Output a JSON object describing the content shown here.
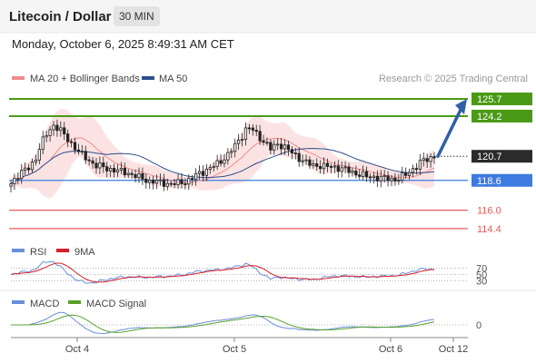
{
  "header": {
    "title": "Litecoin / Dollar",
    "interval": "30 MIN",
    "datetime": "Monday, October 6, 2025 8:49:31 AM CET"
  },
  "chart_data": {
    "type": "candlestick",
    "credit": "Research © 2025 Trading Central",
    "legend": {
      "position": "top-left",
      "items": [
        {
          "label": "MA 20 + Bollinger Bands",
          "color": "#f08c8c"
        },
        {
          "label": "MA 50",
          "color": "#2c4f8c"
        }
      ]
    },
    "x_ticks": [
      "Oct 4",
      "Oct 5",
      "Oct 6",
      "Oct 12"
    ],
    "y_range": [
      113.6,
      127.2
    ],
    "resistance_levels": [
      {
        "value": 125.7,
        "label": "125.7",
        "color": "#4a9a16"
      },
      {
        "value": 124.2,
        "label": "124.2",
        "color": "#4a9a16"
      }
    ],
    "support_levels": [
      {
        "value": 118.6,
        "label": "118.6",
        "color": "#3d7be0"
      },
      {
        "value": 116.0,
        "label": "116.0",
        "color": "#e35b5b"
      },
      {
        "value": 114.4,
        "label": "114.4",
        "color": "#e35b5b"
      }
    ],
    "last_price": {
      "value": 120.7,
      "label": "120.7"
    },
    "forecast_arrow": {
      "from": 120.7,
      "to": 125.7
    },
    "close_path": [
      118.3,
      119.0,
      119.4,
      119.7,
      120.4,
      121.8,
      122.7,
      123.4,
      123.1,
      122.4,
      121.8,
      121.2,
      120.7,
      120.3,
      119.9,
      119.8,
      119.6,
      119.5,
      119.4,
      119.3,
      119.1,
      118.9,
      118.7,
      118.5,
      118.5,
      118.4,
      118.3,
      118.3,
      118.4,
      118.5,
      118.8,
      119.2,
      119.4,
      119.7,
      120.0,
      120.4,
      120.9,
      121.6,
      122.3,
      123.2,
      123.0,
      122.4,
      121.9,
      121.3,
      121.8,
      121.6,
      121.2,
      120.8,
      120.4,
      120.1,
      119.9,
      119.9,
      119.8,
      119.8,
      119.7,
      119.6,
      119.4,
      119.2,
      119.1,
      118.9,
      118.9,
      118.8,
      118.8,
      118.7,
      118.7,
      119.0,
      119.4,
      119.8,
      120.3,
      120.5,
      120.7
    ],
    "rsi": {
      "legend": [
        {
          "label": "RSI",
          "color": "#6a8fd8"
        },
        {
          "label": "9MA",
          "color": "#d81f2a"
        }
      ],
      "levels": [
        "70",
        "50",
        "30"
      ],
      "range": [
        0,
        100
      ]
    },
    "macd": {
      "legend": [
        {
          "label": "MACD",
          "color": "#6a8fd8"
        },
        {
          "label": "MACD Signal",
          "color": "#5aa02c"
        }
      ],
      "zero_label": "0"
    }
  }
}
